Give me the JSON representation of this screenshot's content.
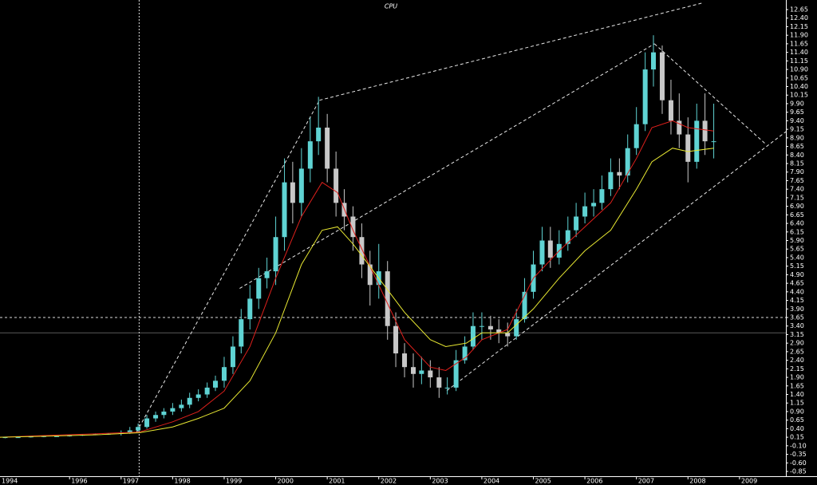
{
  "chart_data": {
    "type": "candlestick",
    "title": "CPU",
    "xlim": [
      1994.65,
      2009.9
    ],
    "ylim": [
      -0.99,
      12.93
    ],
    "xticks": [
      1994,
      1996,
      1997,
      1998,
      1999,
      2000,
      2001,
      2002,
      2003,
      2004,
      2005,
      2006,
      2007,
      2008,
      2009
    ],
    "yticks": [
      12.65,
      {
        "value": 12.4,
        "label": "12.40"
      },
      12.15,
      {
        "value": 11.9,
        "label": "11.90"
      },
      11.65,
      {
        "value": 11.4,
        "label": "11.40"
      },
      11.15,
      {
        "value": 10.9,
        "label": "10.90"
      },
      10.65,
      {
        "value": 10.4,
        "label": "10.40"
      },
      10.15,
      {
        "value": 9.9,
        "label": "9.90"
      },
      9.65,
      {
        "value": 9.4,
        "label": "9.40"
      },
      9.15,
      {
        "value": 8.9,
        "label": "8.90"
      },
      8.65,
      {
        "value": 8.4,
        "label": "8.40"
      },
      8.15,
      {
        "value": 7.9,
        "label": "7.90"
      },
      7.65,
      {
        "value": 7.4,
        "label": "7.40"
      },
      7.15,
      {
        "value": 6.9,
        "label": "6.90"
      },
      6.65,
      {
        "value": 6.4,
        "label": "6.40"
      },
      6.15,
      {
        "value": 5.9,
        "label": "5.90"
      },
      5.65,
      {
        "value": 5.4,
        "label": "5.40"
      },
      5.15,
      {
        "value": 4.9,
        "label": "4.90"
      },
      4.65,
      {
        "value": 4.4,
        "label": "4.40"
      },
      4.15,
      {
        "value": 3.9,
        "label": "3.90"
      },
      3.65,
      {
        "value": 3.4,
        "label": "3.40"
      },
      3.15,
      {
        "value": 2.9,
        "label": "2.90"
      },
      2.65,
      {
        "value": 2.4,
        "label": "2.40"
      },
      2.15,
      {
        "value": 1.9,
        "label": "1.90"
      },
      1.65,
      {
        "value": 1.4,
        "label": "1.40"
      },
      1.15,
      {
        "value": 0.9,
        "label": "0.90"
      },
      0.65,
      {
        "value": 0.4,
        "label": "0.40"
      },
      0.15,
      {
        "value": -0.1,
        "label": "-0.10"
      },
      -0.35,
      {
        "value": -0.6,
        "label": "-0.60"
      },
      -0.85
    ],
    "up_color": "#5fd3d3",
    "down_color": "#c8c8c8",
    "candles": {
      "x": [
        1994.75,
        1995.0,
        1995.25,
        1995.5,
        1995.75,
        1996.0,
        1996.25,
        1996.5,
        1996.75,
        1997.0,
        1997.17,
        1997.33,
        1997.5,
        1997.67,
        1997.83,
        1998.0,
        1998.17,
        1998.33,
        1998.5,
        1998.67,
        1998.83,
        1999.0,
        1999.17,
        1999.33,
        1999.5,
        1999.67,
        1999.83,
        2000.0,
        2000.17,
        2000.33,
        2000.5,
        2000.67,
        2000.83,
        2001.0,
        2001.17,
        2001.33,
        2001.5,
        2001.67,
        2001.83,
        2002.0,
        2002.17,
        2002.33,
        2002.5,
        2002.67,
        2002.83,
        2003.0,
        2003.17,
        2003.33,
        2003.5,
        2003.67,
        2003.83,
        2004.0,
        2004.17,
        2004.33,
        2004.5,
        2004.67,
        2004.83,
        2005.0,
        2005.17,
        2005.33,
        2005.5,
        2005.67,
        2005.83,
        2006.0,
        2006.17,
        2006.33,
        2006.5,
        2006.67,
        2006.83,
        2007.0,
        2007.17,
        2007.33,
        2007.5,
        2007.67,
        2007.83,
        2008.0,
        2008.17,
        2008.33,
        2008.5
      ],
      "open": [
        0.14,
        0.15,
        0.15,
        0.17,
        0.18,
        0.18,
        0.2,
        0.22,
        0.24,
        0.25,
        0.28,
        0.35,
        0.45,
        0.7,
        0.8,
        0.9,
        1.0,
        1.1,
        1.3,
        1.4,
        1.6,
        1.8,
        2.2,
        2.8,
        3.6,
        4.2,
        4.8,
        5.0,
        6.0,
        7.6,
        7.0,
        8.0,
        8.8,
        9.2,
        8.0,
        7.0,
        6.6,
        6.0,
        5.2,
        4.6,
        5.0,
        3.4,
        2.6,
        2.2,
        2.0,
        2.1,
        1.9,
        1.6,
        1.6,
        2.4,
        2.8,
        3.4,
        3.4,
        3.3,
        3.2,
        3.1,
        3.6,
        4.4,
        5.2,
        5.9,
        5.4,
        5.8,
        6.2,
        6.6,
        6.9,
        7.0,
        7.4,
        7.9,
        7.8,
        8.6,
        9.3,
        10.9,
        11.4,
        10.0,
        9.4,
        9.0,
        8.2,
        9.4,
        8.8
      ],
      "high": [
        0.16,
        0.17,
        0.18,
        0.19,
        0.2,
        0.22,
        0.24,
        0.26,
        0.27,
        0.35,
        0.45,
        0.55,
        0.8,
        0.9,
        1.0,
        1.15,
        1.25,
        1.45,
        1.55,
        1.75,
        1.95,
        2.5,
        3.1,
        3.9,
        4.6,
        5.1,
        5.4,
        6.6,
        8.3,
        8.2,
        8.6,
        9.5,
        10.1,
        9.6,
        8.5,
        7.4,
        6.9,
        6.4,
        5.6,
        5.8,
        5.3,
        3.8,
        2.9,
        2.6,
        2.5,
        2.4,
        2.2,
        1.9,
        2.7,
        3.1,
        3.8,
        3.8,
        3.7,
        3.6,
        3.5,
        3.9,
        4.8,
        5.6,
        6.3,
        6.3,
        6.2,
        6.6,
        7.0,
        7.3,
        7.4,
        7.8,
        8.3,
        8.3,
        9.0,
        9.8,
        11.4,
        11.9,
        11.6,
        10.6,
        10.2,
        9.5,
        9.9,
        10.2,
        9.9
      ],
      "low": [
        0.12,
        0.13,
        0.14,
        0.15,
        0.16,
        0.17,
        0.19,
        0.21,
        0.22,
        0.2,
        0.25,
        0.3,
        0.4,
        0.6,
        0.7,
        0.8,
        0.9,
        1.0,
        1.2,
        1.3,
        1.5,
        1.6,
        2.0,
        2.6,
        3.3,
        3.9,
        4.5,
        4.6,
        5.6,
        6.4,
        6.6,
        7.6,
        8.4,
        7.6,
        6.6,
        6.2,
        5.6,
        4.8,
        4.0,
        4.2,
        3.0,
        2.2,
        1.9,
        1.6,
        1.7,
        1.6,
        1.3,
        1.4,
        1.5,
        2.3,
        2.7,
        3.0,
        3.0,
        2.9,
        2.8,
        3.0,
        3.5,
        4.2,
        5.0,
        5.1,
        5.2,
        5.6,
        6.0,
        6.4,
        6.6,
        6.8,
        7.2,
        7.4,
        7.6,
        8.4,
        9.1,
        10.4,
        9.6,
        9.0,
        8.6,
        7.6,
        8.0,
        8.4,
        8.3
      ],
      "close": [
        0.15,
        0.15,
        0.17,
        0.18,
        0.18,
        0.2,
        0.22,
        0.24,
        0.25,
        0.28,
        0.35,
        0.45,
        0.7,
        0.8,
        0.9,
        1.0,
        1.1,
        1.3,
        1.4,
        1.6,
        1.8,
        2.2,
        2.8,
        3.6,
        4.2,
        4.8,
        5.0,
        6.0,
        7.6,
        7.0,
        8.0,
        8.8,
        9.2,
        8.0,
        7.0,
        6.6,
        6.0,
        5.2,
        4.6,
        5.0,
        3.4,
        2.6,
        2.2,
        2.0,
        2.1,
        1.9,
        1.6,
        1.6,
        2.4,
        2.8,
        3.4,
        3.4,
        3.3,
        3.2,
        3.1,
        3.6,
        4.4,
        5.2,
        5.9,
        5.4,
        5.8,
        6.2,
        6.6,
        6.9,
        7.0,
        7.4,
        7.9,
        7.8,
        8.6,
        9.3,
        10.9,
        11.4,
        10.0,
        9.4,
        9.0,
        8.2,
        9.4,
        8.8,
        8.8
      ]
    },
    "overlays": [
      {
        "color": "#e0201c",
        "x": [
          1994.65,
          1995.5,
          1996.5,
          1997.35,
          1998,
          1998.5,
          1999,
          1999.5,
          2000,
          2000.5,
          2000.9,
          2001.2,
          2001.5,
          2002,
          2002.5,
          2003,
          2003.3,
          2003.7,
          2004,
          2004.5,
          2005,
          2005.5,
          2006,
          2006.5,
          2007,
          2007.3,
          2007.7,
          2008,
          2008.5
        ],
        "values": [
          0.15,
          0.2,
          0.25,
          0.3,
          0.6,
          0.9,
          1.5,
          2.8,
          4.8,
          6.6,
          7.6,
          7.3,
          6.2,
          4.6,
          3.0,
          2.2,
          2.1,
          2.5,
          3.0,
          3.3,
          4.8,
          5.6,
          6.3,
          7.0,
          8.3,
          9.2,
          9.4,
          9.2,
          9.1
        ]
      },
      {
        "color": "#e8e832",
        "x": [
          1994.65,
          1995.5,
          1996.5,
          1997.35,
          1998,
          1998.5,
          1999,
          1999.5,
          2000,
          2000.5,
          2000.9,
          2001.2,
          2001.5,
          2002,
          2002.5,
          2003,
          2003.3,
          2003.7,
          2004,
          2004.5,
          2005,
          2005.5,
          2006,
          2006.5,
          2007,
          2007.3,
          2007.7,
          2008,
          2008.5
        ],
        "values": [
          0.15,
          0.18,
          0.22,
          0.28,
          0.45,
          0.7,
          1.0,
          1.8,
          3.2,
          5.2,
          6.2,
          6.3,
          5.8,
          4.8,
          3.8,
          3.0,
          2.8,
          2.9,
          3.2,
          3.2,
          3.9,
          4.8,
          5.6,
          6.2,
          7.4,
          8.2,
          8.6,
          8.5,
          8.6
        ]
      }
    ],
    "trendlines": [
      {
        "x": [
          1997.3,
          2000.85
        ],
        "values": [
          0.3,
          10.0
        ]
      },
      {
        "x": [
          2000.85,
          2008.3
        ],
        "values": [
          10.0,
          12.85
        ]
      },
      {
        "x": [
          1999.3,
          2007.35
        ],
        "values": [
          4.5,
          11.65
        ]
      },
      {
        "x": [
          2007.35,
          2009.5
        ],
        "values": [
          11.65,
          8.73
        ]
      },
      {
        "x": [
          2003.32,
          2009.9
        ],
        "values": [
          1.51,
          9.08
        ]
      }
    ],
    "crosshair": {
      "x": 1997.35,
      "y": 3.65
    },
    "hline": {
      "value": 3.2,
      "color": "#5a5a5a"
    }
  }
}
